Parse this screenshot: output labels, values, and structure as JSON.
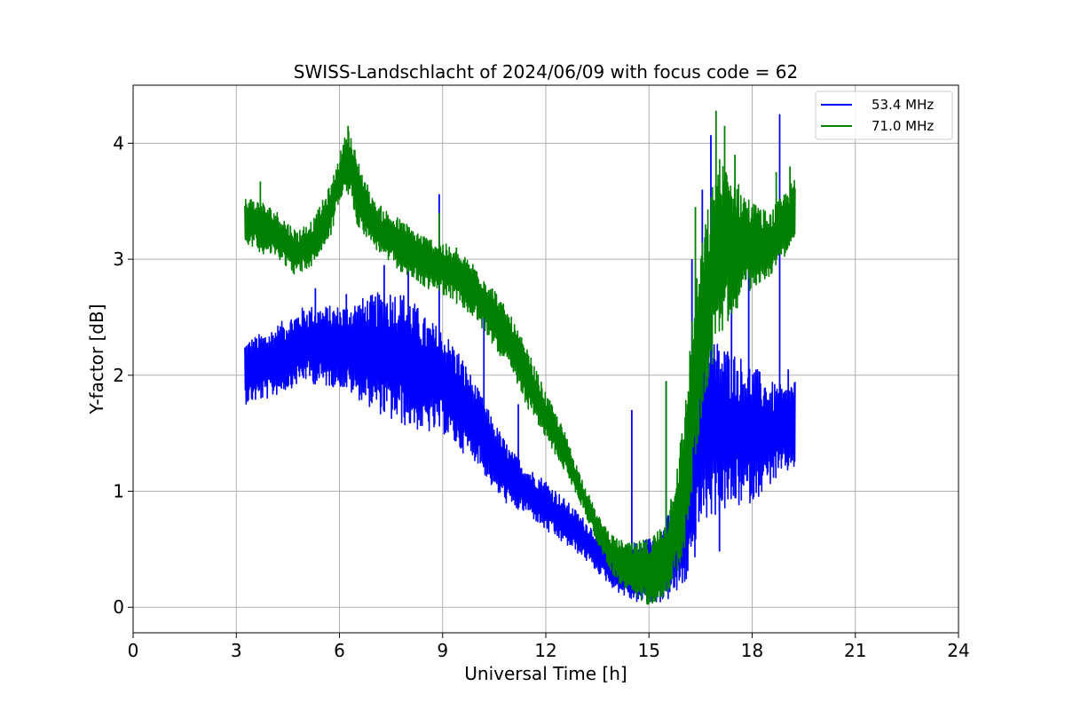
{
  "chart_data": {
    "type": "line",
    "title": "SWISS-Landschlacht of 2024/06/09 with focus code = 62",
    "xlabel": "Universal Time [h]",
    "ylabel": "Y-factor [dB]",
    "xlim": [
      0,
      24
    ],
    "ylim": [
      -0.22,
      4.5
    ],
    "xticks": [
      0,
      3,
      6,
      9,
      12,
      15,
      18,
      21,
      24
    ],
    "xtick_labels": [
      "0",
      "3",
      "6",
      "9",
      "12",
      "15",
      "18",
      "21",
      "24"
    ],
    "yticks": [
      0,
      1,
      2,
      3,
      4
    ],
    "ytick_labels": [
      "0",
      "1",
      "2",
      "3",
      "4"
    ],
    "grid": true,
    "legend_position": "upper-right",
    "series": [
      {
        "name": "53.4 MHz",
        "color": "#0000ff",
        "x": [
          3.25,
          4.0,
          5.0,
          5.5,
          6.0,
          7.0,
          7.5,
          8.0,
          8.5,
          9.0,
          9.5,
          10.0,
          10.5,
          11.0,
          11.5,
          12.0,
          12.5,
          13.0,
          13.5,
          14.0,
          14.5,
          15.0,
          15.5,
          16.0,
          16.3,
          16.5,
          17.0,
          17.5,
          18.0,
          18.5,
          19.0,
          19.25
        ],
        "y_low": [
          1.75,
          1.8,
          1.95,
          1.9,
          1.9,
          1.7,
          1.6,
          1.55,
          1.5,
          1.5,
          1.35,
          1.25,
          1.0,
          0.85,
          0.8,
          0.65,
          0.55,
          0.45,
          0.3,
          0.15,
          0.05,
          0.02,
          0.05,
          0.15,
          0.35,
          0.7,
          0.8,
          0.85,
          0.9,
          1.05,
          1.15,
          1.2
        ],
        "y_high": [
          2.3,
          2.4,
          2.6,
          2.6,
          2.6,
          2.7,
          2.75,
          2.7,
          2.5,
          2.4,
          2.2,
          1.9,
          1.6,
          1.35,
          1.2,
          1.1,
          0.95,
          0.8,
          0.65,
          0.55,
          0.55,
          0.6,
          0.75,
          1.2,
          2.0,
          2.4,
          2.3,
          2.2,
          2.1,
          1.95,
          1.9,
          2.0
        ],
        "spikes": [
          [
            5.3,
            2.75
          ],
          [
            6.2,
            2.7
          ],
          [
            7.3,
            2.95
          ],
          [
            8.0,
            2.9
          ],
          [
            8.9,
            3.56
          ],
          [
            10.2,
            2.55
          ],
          [
            11.2,
            1.75
          ],
          [
            14.5,
            1.7
          ],
          [
            15.5,
            1.95
          ],
          [
            16.25,
            3.0
          ],
          [
            16.55,
            3.6
          ],
          [
            16.8,
            4.07
          ],
          [
            17.4,
            3.1
          ],
          [
            17.9,
            3.05
          ],
          [
            18.8,
            4.25
          ],
          [
            19.05,
            2.05
          ],
          [
            17.05,
            0.48
          ]
        ]
      },
      {
        "name": "71.0 MHz",
        "color": "#008000",
        "x": [
          3.25,
          3.75,
          4.25,
          4.75,
          5.25,
          5.75,
          6.0,
          6.25,
          6.5,
          7.0,
          7.5,
          8.0,
          8.5,
          9.0,
          9.5,
          10.0,
          10.5,
          11.0,
          11.5,
          12.0,
          12.5,
          13.0,
          13.5,
          14.0,
          14.5,
          15.0,
          15.5,
          16.0,
          16.25,
          16.5,
          17.0,
          17.5,
          18.0,
          18.5,
          19.0,
          19.25
        ],
        "y_low": [
          3.15,
          3.05,
          3.0,
          2.85,
          2.95,
          3.2,
          3.5,
          3.55,
          3.3,
          3.1,
          2.95,
          2.85,
          2.75,
          2.7,
          2.6,
          2.45,
          2.25,
          2.0,
          1.7,
          1.45,
          1.2,
          0.9,
          0.55,
          0.25,
          0.08,
          0.02,
          0.1,
          0.4,
          0.95,
          1.6,
          2.3,
          2.55,
          2.75,
          2.85,
          3.05,
          3.15
        ],
        "y_high": [
          3.55,
          3.5,
          3.4,
          3.25,
          3.35,
          3.65,
          3.9,
          4.15,
          3.9,
          3.5,
          3.4,
          3.3,
          3.2,
          3.15,
          3.05,
          2.95,
          2.75,
          2.5,
          2.2,
          1.85,
          1.55,
          1.15,
          0.8,
          0.6,
          0.55,
          0.6,
          0.75,
          1.6,
          2.5,
          3.1,
          3.9,
          3.7,
          3.5,
          3.4,
          3.6,
          3.7
        ],
        "spikes": [
          [
            3.7,
            3.67
          ],
          [
            6.25,
            4.15
          ],
          [
            8.9,
            3.4
          ],
          [
            9.4,
            3.1
          ],
          [
            15.5,
            1.95
          ],
          [
            16.35,
            3.45
          ],
          [
            16.95,
            4.28
          ],
          [
            17.2,
            4.15
          ],
          [
            17.5,
            3.9
          ],
          [
            18.7,
            3.75
          ],
          [
            19.1,
            3.8
          ]
        ]
      }
    ]
  }
}
